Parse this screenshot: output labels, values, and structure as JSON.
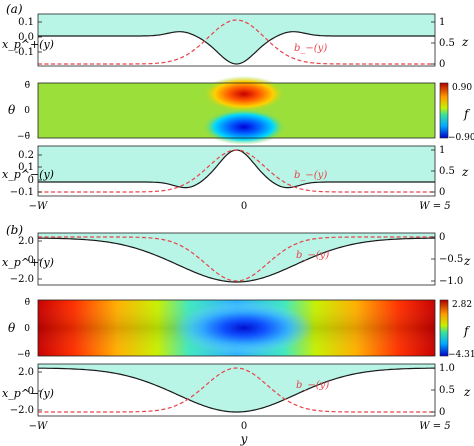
{
  "figure": {
    "parts": [
      {
        "label": "(a)",
        "top": {
          "ylabel": "x_p^+(y)",
          "yticks": [
            "0.1",
            "0.0",
            "-0.1"
          ],
          "zticks": [
            "1",
            "0.5",
            "0"
          ],
          "zlabel": "z",
          "curve_label": "b_−(y)"
        },
        "heatmap": {
          "ylabel": "θ",
          "yticks": [
            "θ̄",
            "0",
            "−θ̄"
          ],
          "cbar_max": "0.90",
          "cbar_min": "−0.90",
          "cbar_label": "f"
        },
        "bottom": {
          "ylabel": "x_p^−(y)",
          "yticks": [
            "0.2",
            "0.1",
            "0",
            "−0.1"
          ],
          "zticks": [
            "1",
            "0.5",
            "0"
          ],
          "zlabel": "z",
          "curve_label": "b_−(y)"
        },
        "xticks": [
          "−W",
          "0",
          "W = 5"
        ]
      },
      {
        "label": "(b)",
        "top": {
          "ylabel": "x_p^+(y)",
          "yticks": [
            "2.0",
            "0",
            "−2.0"
          ],
          "zticks": [
            "0",
            "−0.5",
            "−1.0"
          ],
          "zlabel": "z",
          "curve_label": "b_−(y)"
        },
        "heatmap": {
          "ylabel": "θ",
          "yticks": [
            "θ̄",
            "0",
            "−θ̄"
          ],
          "cbar_max": "2.82",
          "cbar_min": "−4.31",
          "cbar_label": "f"
        },
        "bottom": {
          "ylabel": "x_p^−(y)",
          "yticks": [
            "2.0",
            "0",
            "−2.0"
          ],
          "zticks": [
            "1.0",
            "0.5",
            "0"
          ],
          "zlabel": "z",
          "curve_label": "b_−(y)"
        },
        "xticks": [
          "−W",
          "0",
          "W = 5"
        ],
        "xlabel": "y"
      }
    ],
    "colors": {
      "fill": "#b8f5e6",
      "curve": "#1a1a1a",
      "dashed": "#e8434a",
      "axis": "#222222"
    }
  }
}
